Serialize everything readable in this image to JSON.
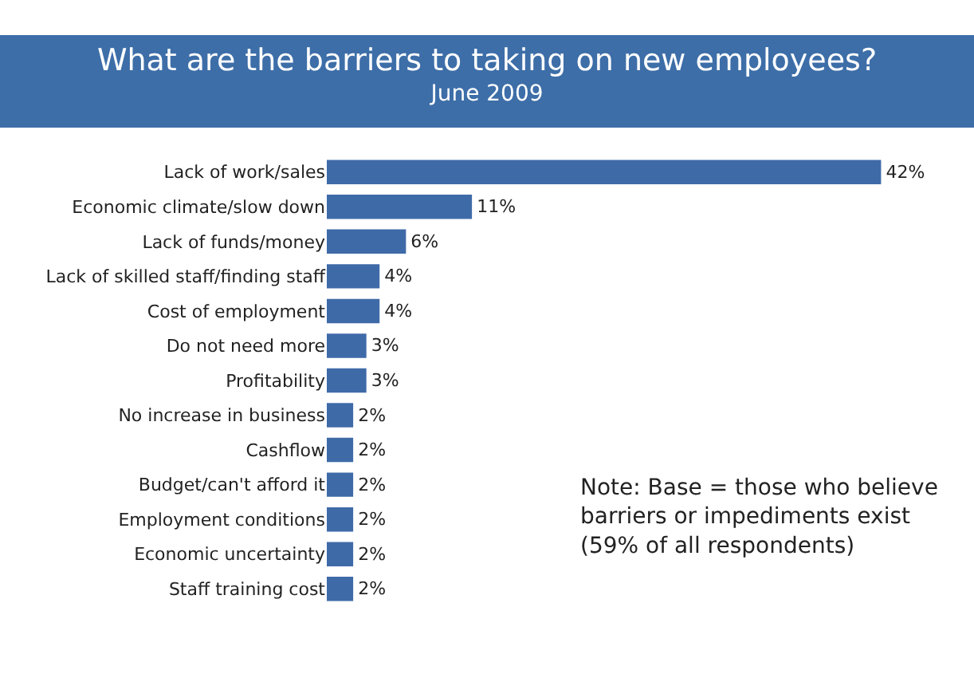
{
  "chart_data": {
    "type": "bar",
    "orientation": "horizontal",
    "title": "What are the barriers to taking on new employees?",
    "subtitle": "June 2009",
    "categories": [
      "Lack of work/sales",
      "Economic climate/slow down",
      "Lack of funds/money",
      "Lack of skilled staff/finding staff",
      "Cost of employment",
      "Do not need more",
      "Profitability",
      "No increase in business",
      "Cashflow",
      "Budget/can't afford it",
      "Employment conditions",
      "Economic uncertainty",
      "Staff training cost"
    ],
    "values": [
      42,
      11,
      6,
      4,
      4,
      3,
      3,
      2,
      2,
      2,
      2,
      2,
      2
    ],
    "value_labels": [
      "42%",
      "11%",
      "6%",
      "4%",
      "4%",
      "3%",
      "3%",
      "2%",
      "2%",
      "2%",
      "2%",
      "2%",
      "2%"
    ],
    "color": "#3f6aa8",
    "annotations": [
      "Note: Base = those who believe barriers or impediments exist (59% of all respondents)"
    ],
    "grid": false,
    "legend": false
  }
}
